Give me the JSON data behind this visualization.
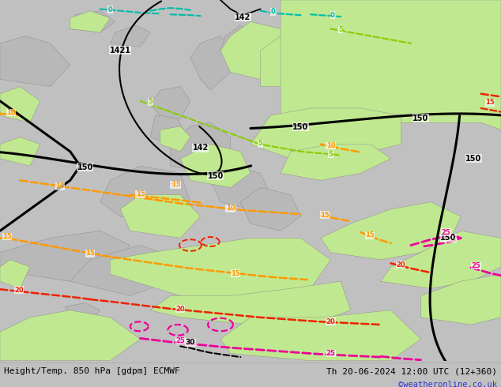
{
  "title_left": "Height/Temp. 850 hPa [gdpm] ECMWF",
  "title_right": "Th 20-06-2024 12:00 UTC (12+360)",
  "credit": "©weatheronline.co.uk",
  "figsize": [
    6.34,
    4.9
  ],
  "dpi": 100,
  "credit_color": "#3333cc",
  "ocean_color": "#d8d8d8",
  "land_gray": "#b8b8b8",
  "land_green": "#c0e890",
  "bar_bg": "#ffffff",
  "fig_bg": "#c0c0c0",
  "C_TEAL": "#00bbaa",
  "C_GREEN": "#88cc00",
  "C_ORANGE": "#ff9900",
  "C_RED": "#ee2200",
  "C_MAGENTA": "#ee0099",
  "C_BLACK": "#000000"
}
